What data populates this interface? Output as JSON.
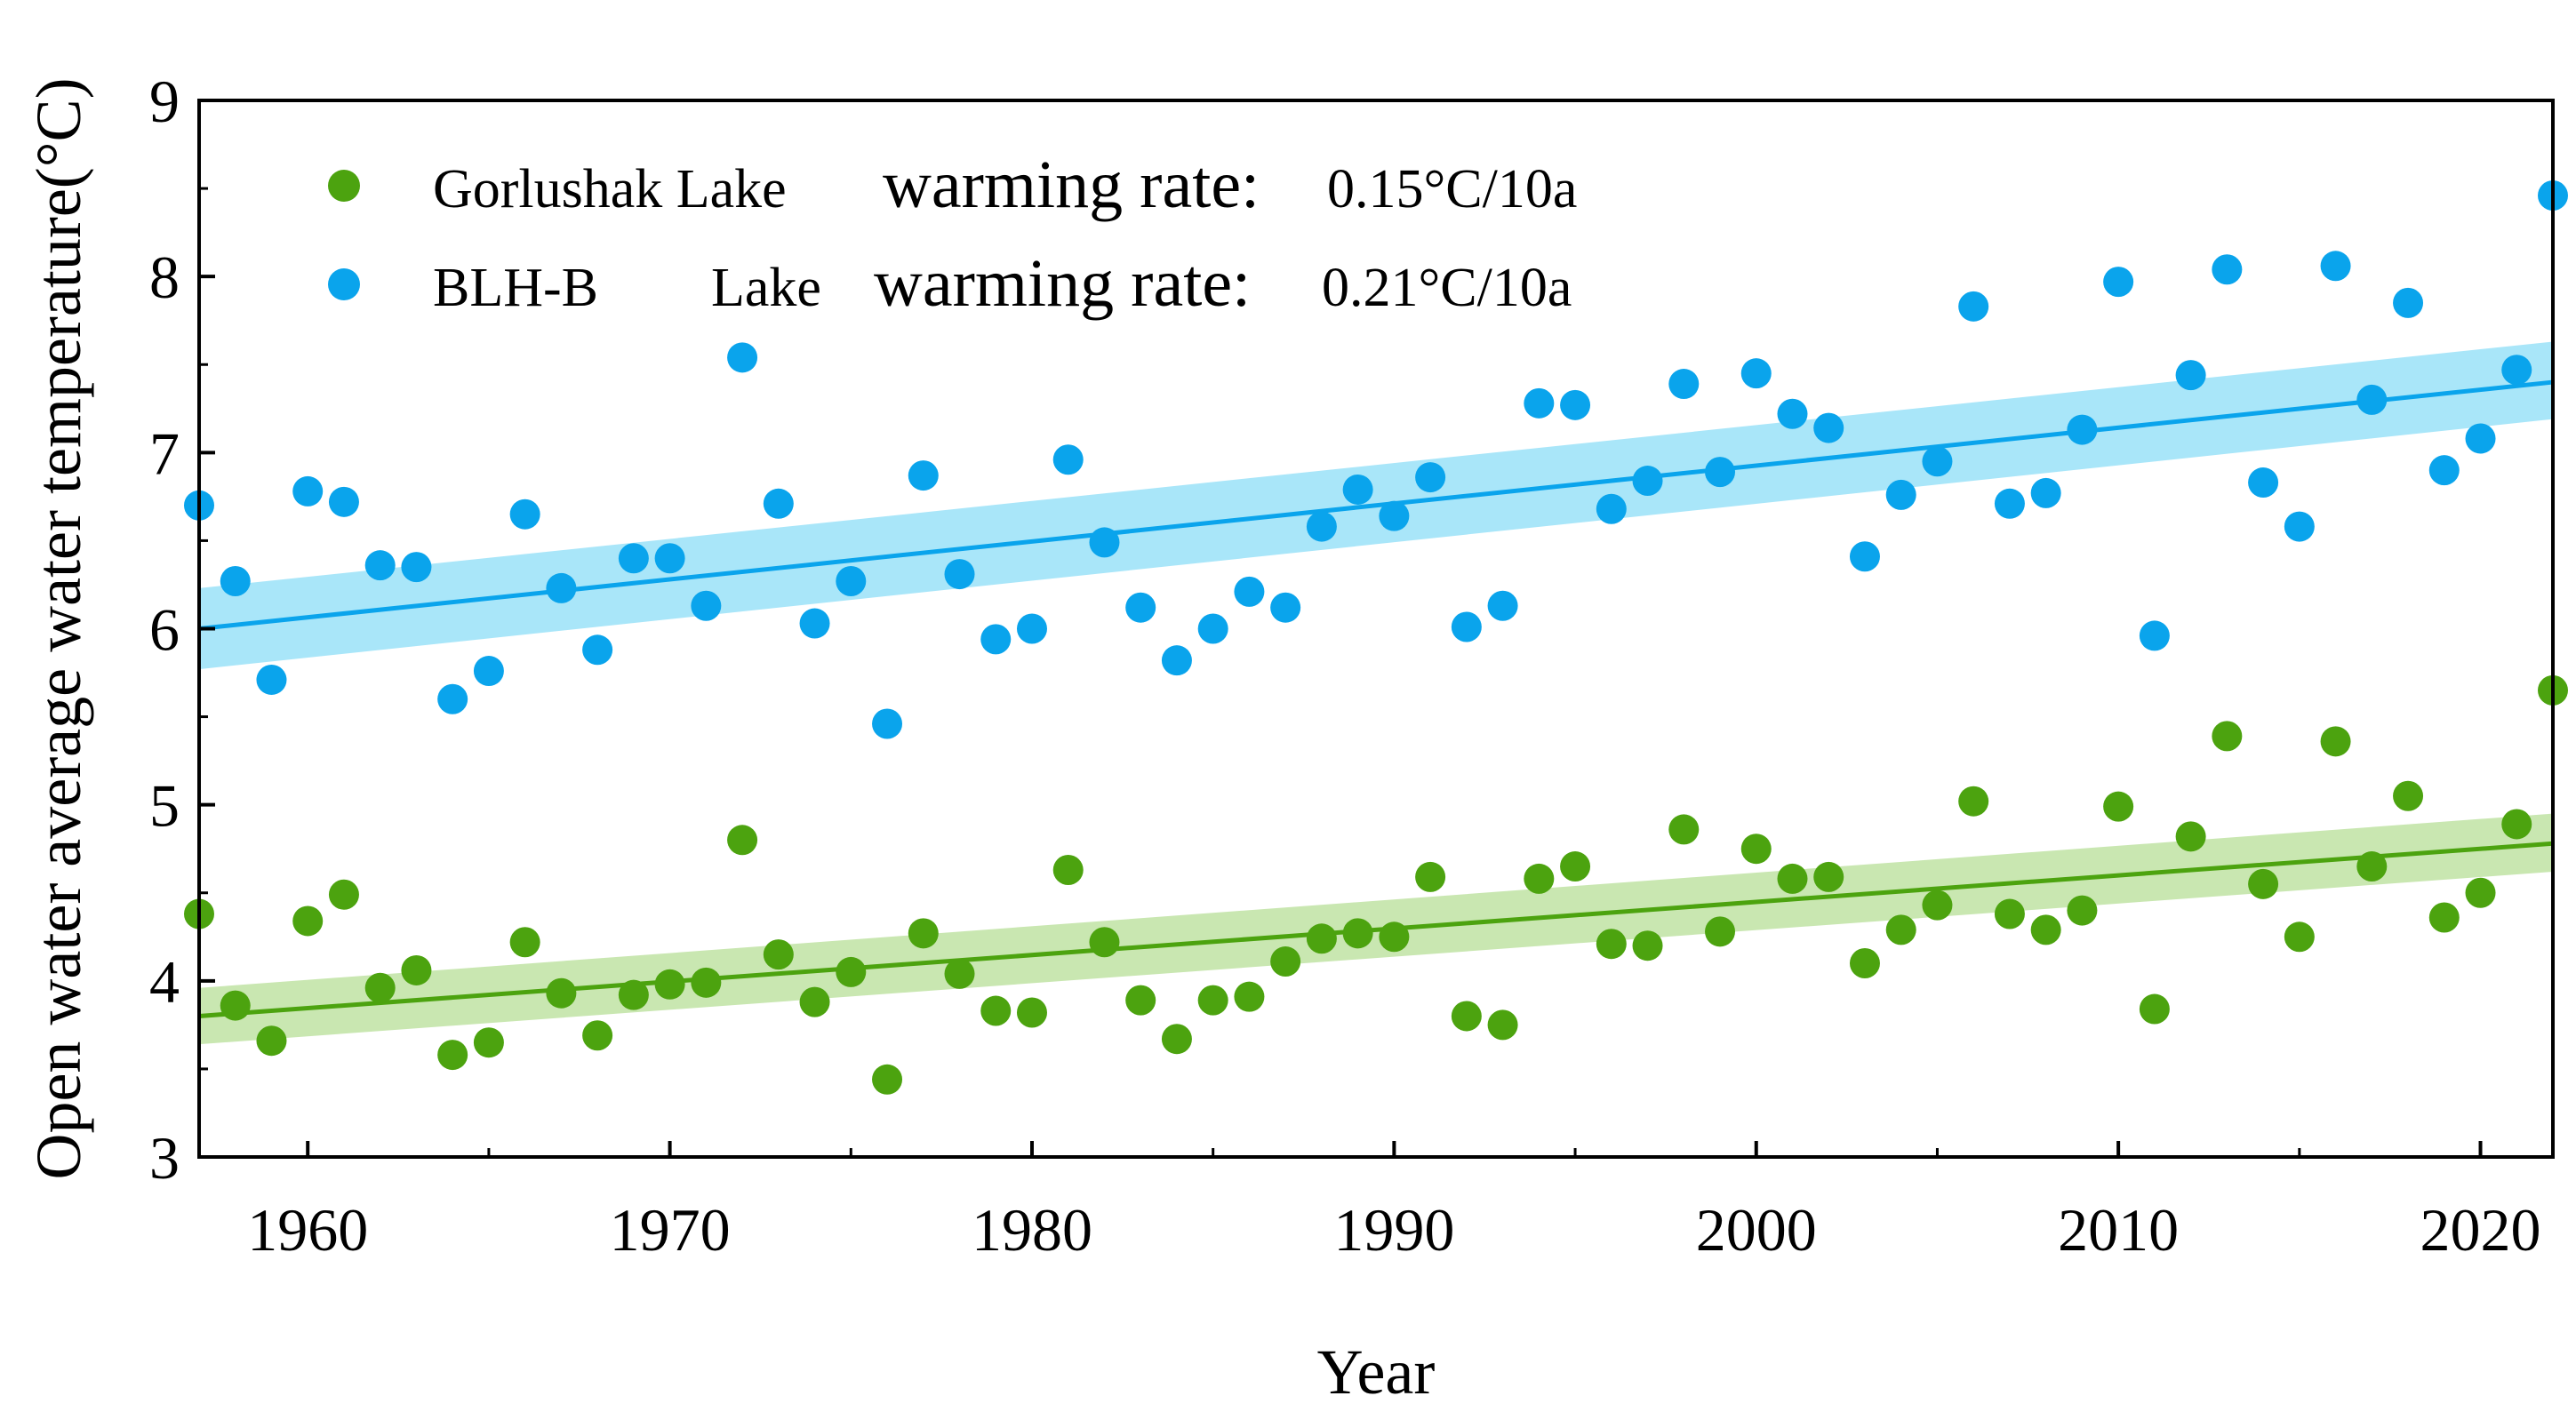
{
  "chart_data": {
    "type": "scatter",
    "title": "",
    "xlabel": "Year",
    "ylabel": "Open water average water temperature(°C)",
    "xlim": [
      1957,
      2022
    ],
    "ylim": [
      3,
      9
    ],
    "xticks": [
      1960,
      1970,
      1980,
      1990,
      2000,
      2010,
      2020
    ],
    "yticks": [
      3,
      4,
      5,
      6,
      7,
      8,
      9
    ],
    "x": [
      1957,
      1958,
      1959,
      1960,
      1961,
      1962,
      1963,
      1964,
      1965,
      1966,
      1967,
      1968,
      1969,
      1970,
      1971,
      1972,
      1973,
      1974,
      1975,
      1976,
      1977,
      1978,
      1979,
      1980,
      1981,
      1982,
      1983,
      1984,
      1985,
      1986,
      1987,
      1988,
      1989,
      1990,
      1991,
      1992,
      1993,
      1994,
      1995,
      1996,
      1997,
      1998,
      1999,
      2000,
      2001,
      2002,
      2003,
      2004,
      2005,
      2006,
      2007,
      2008,
      2009,
      2010,
      2011,
      2012,
      2013,
      2014,
      2015,
      2016,
      2017,
      2018,
      2019,
      2020,
      2021,
      2022
    ],
    "legend_position": "top-left",
    "series": [
      {
        "name": "Gorlushak Lake",
        "legend_name": "Gorlushak Lake",
        "rate_label": "warming rate:",
        "rate_value": "0.15°C/10a",
        "color": "#4ca30f",
        "band_color": "#bfe3a3",
        "values": [
          4.38,
          3.86,
          3.66,
          4.34,
          4.49,
          3.96,
          4.06,
          3.58,
          3.65,
          4.22,
          3.93,
          3.69,
          3.92,
          3.98,
          3.99,
          4.8,
          4.15,
          3.88,
          4.05,
          3.44,
          4.27,
          4.04,
          3.83,
          3.82,
          4.63,
          4.22,
          3.89,
          3.67,
          3.89,
          3.91,
          4.11,
          4.24,
          4.27,
          4.25,
          4.59,
          3.8,
          3.75,
          4.58,
          4.65,
          4.21,
          4.2,
          4.86,
          4.28,
          4.75,
          4.58,
          4.59,
          4.1,
          4.29,
          4.43,
          5.02,
          4.38,
          4.29,
          4.4,
          4.99,
          3.84,
          4.82,
          5.39,
          4.55,
          4.25,
          5.36,
          4.65,
          5.05,
          4.36,
          4.5,
          4.89,
          5.65
        ],
        "trend": {
          "start": 3.8,
          "end": 4.78,
          "ci_start": [
            3.64,
            3.96
          ],
          "ci_end": [
            4.62,
            4.95
          ]
        }
      },
      {
        "name": "BLH-B Lake",
        "legend_name": "BLH-B",
        "legend_name_2": "Lake",
        "rate_label": "warming rate:",
        "rate_value": "0.21°C/10a",
        "color": "#0aa4ec",
        "band_color": "#9ae2f8",
        "values": [
          6.7,
          6.27,
          5.71,
          6.78,
          6.72,
          6.36,
          6.35,
          5.6,
          5.76,
          6.65,
          6.23,
          5.88,
          6.4,
          6.4,
          6.13,
          7.54,
          6.71,
          6.03,
          6.27,
          5.46,
          6.87,
          6.31,
          5.94,
          6.0,
          6.96,
          6.49,
          6.12,
          5.82,
          6.0,
          6.21,
          6.12,
          6.58,
          6.79,
          6.64,
          6.86,
          6.01,
          6.13,
          7.28,
          7.27,
          6.68,
          6.84,
          7.39,
          6.89,
          7.45,
          7.22,
          7.14,
          6.41,
          6.76,
          6.95,
          7.83,
          6.71,
          6.77,
          7.13,
          7.97,
          5.96,
          7.44,
          8.04,
          6.83,
          6.58,
          8.06,
          7.3,
          7.85,
          6.9,
          7.08,
          7.47,
          8.46
        ],
        "trend": {
          "start": 6.0,
          "end": 7.4,
          "ci_start": [
            5.77,
            6.23
          ],
          "ci_end": [
            7.19,
            7.63
          ]
        }
      }
    ]
  }
}
